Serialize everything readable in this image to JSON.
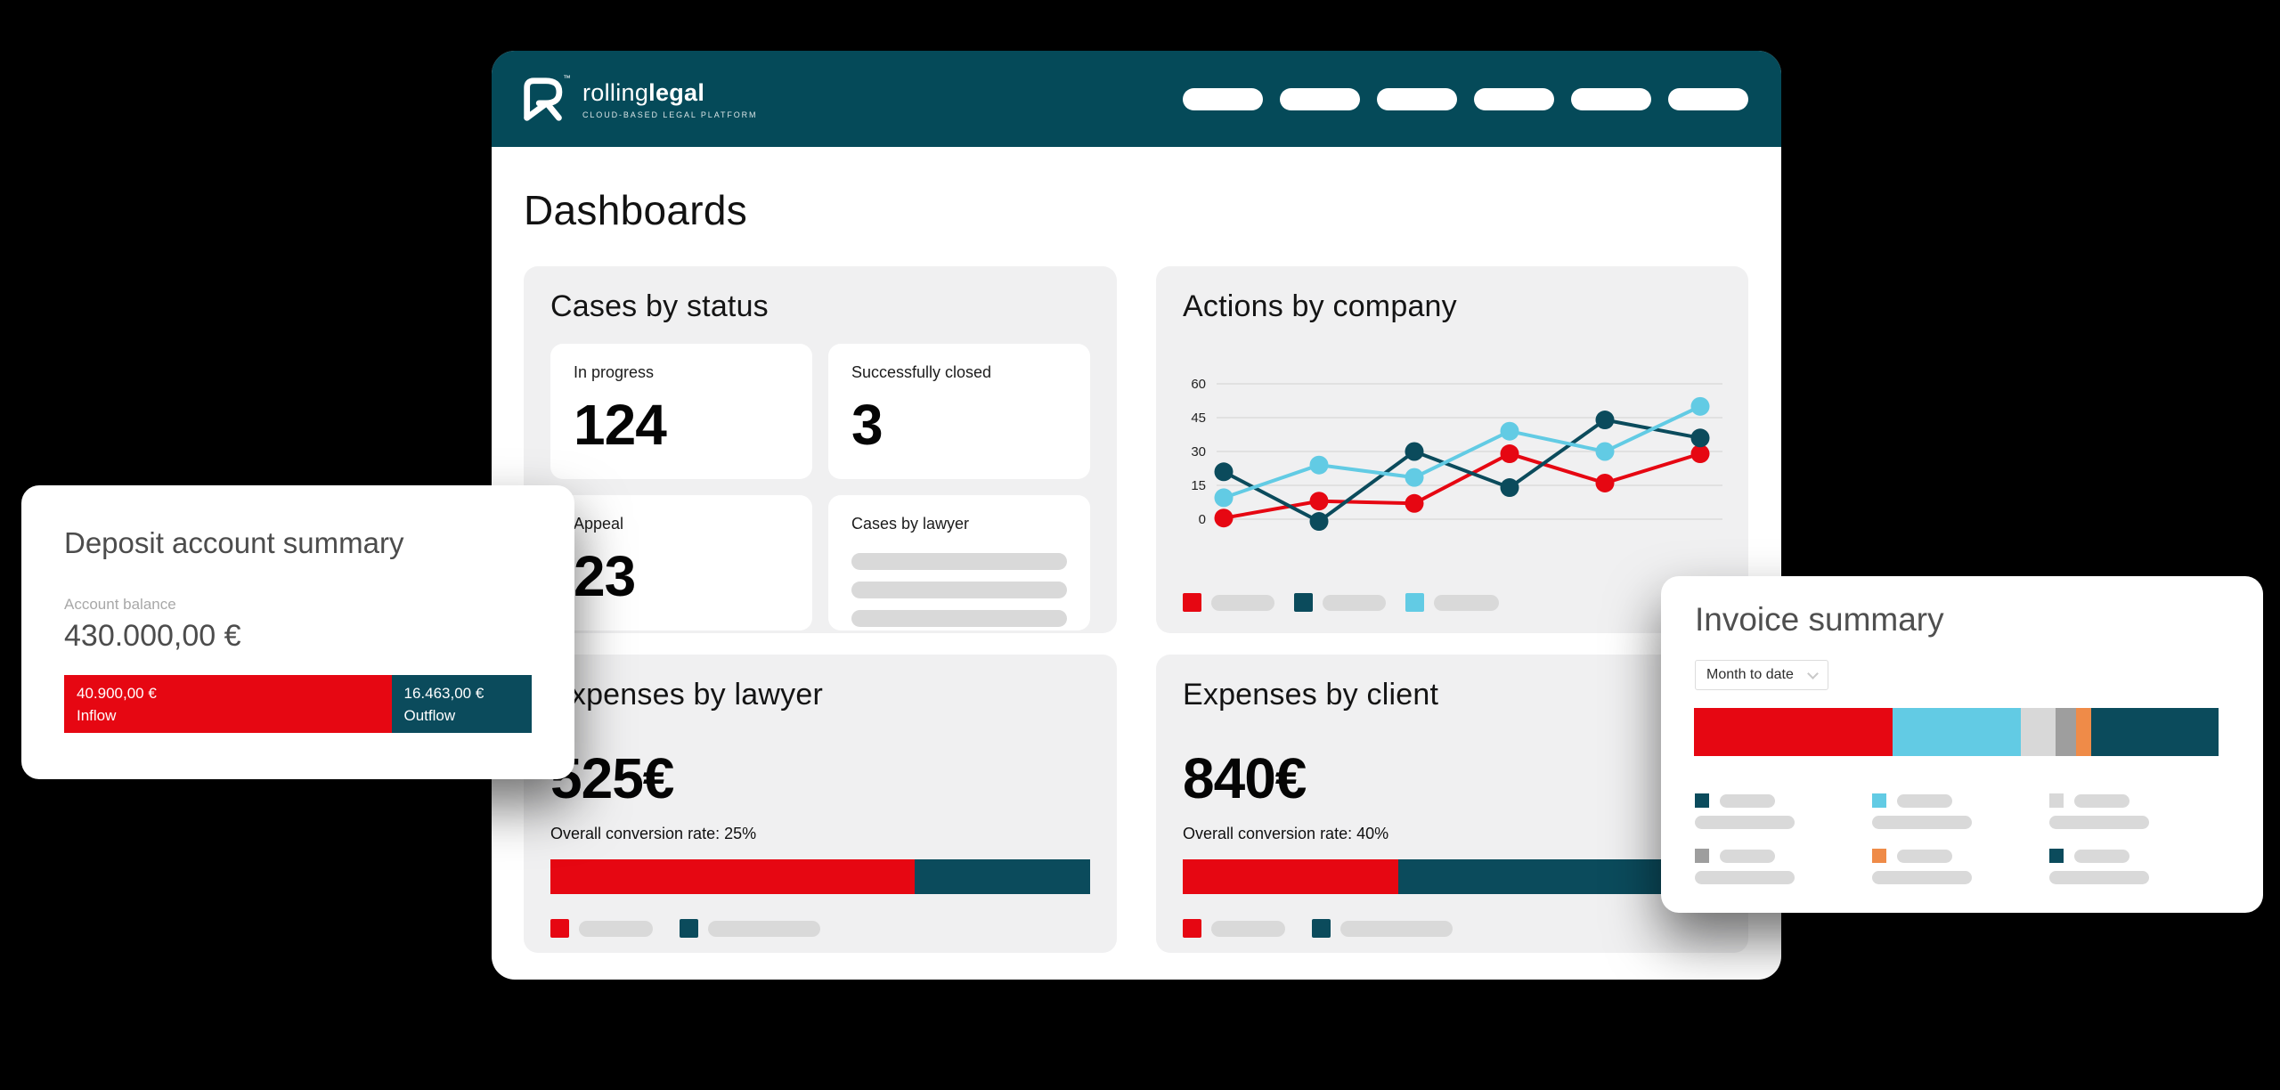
{
  "colors": {
    "header_teal": "#054a59",
    "red": "#e60712",
    "teal": "#0b4b5c",
    "light_blue": "#62cbe4",
    "orange": "#ef8b48",
    "light_gray": "#d8d8d8",
    "mid_gray": "#9e9e9e",
    "placeholder_gray": "#d9d9d9",
    "card_bg": "#f0f0f1",
    "page_bg": "#000000"
  },
  "header": {
    "brand": {
      "word_regular": "rolling",
      "word_bold": "legal",
      "trademark": "™",
      "tagline": "CLOUD-BASED LEGAL PLATFORM"
    },
    "nav_placeholder_count": 6
  },
  "page_title": "Dashboards",
  "cases_by_status": {
    "title": "Cases by status",
    "tiles": [
      {
        "label": "In progress",
        "value": "124"
      },
      {
        "label": "Successfully closed",
        "value": "3"
      },
      {
        "label": "Appeal",
        "value": "23"
      },
      {
        "label": "Cases by lawyer",
        "placeholder_rows": 3
      }
    ]
  },
  "actions_by_company": {
    "title": "Actions by company",
    "chart_data": {
      "type": "line",
      "x": [
        1,
        2,
        3,
        4,
        5,
        6
      ],
      "y_ticks": [
        0,
        15,
        30,
        45,
        60
      ],
      "ylim": [
        -3,
        62
      ],
      "grid": true,
      "legend_position": "bottom",
      "series": [
        {
          "name": "red-series",
          "color_key": "red",
          "values": [
            0.5,
            8,
            7,
            29,
            16,
            29
          ]
        },
        {
          "name": "teal-series",
          "color_key": "teal",
          "values": [
            21,
            -1,
            30,
            14,
            44,
            36
          ]
        },
        {
          "name": "light-blue-series",
          "color_key": "light_blue",
          "values": [
            9.5,
            24,
            18.5,
            39,
            30,
            50
          ]
        }
      ],
      "legend_color_keys": [
        "red",
        "teal",
        "light_blue"
      ]
    }
  },
  "expenses_by_lawyer": {
    "title": "Expenses by lawyer",
    "amount": "525€",
    "conversion_note": "Overall conversion rate: 25%",
    "chart_data": {
      "type": "stacked-bar",
      "segments": [
        {
          "color_key": "red",
          "pct": 67.5
        },
        {
          "color_key": "teal",
          "pct": 32.5
        }
      ]
    },
    "legend_color_keys": [
      "red",
      "teal"
    ]
  },
  "expenses_by_client": {
    "title": "Expenses by client",
    "amount": "840€",
    "conversion_note": "Overall conversion rate: 40%",
    "chart_data": {
      "type": "stacked-bar",
      "segments": [
        {
          "color_key": "red",
          "pct": 40
        },
        {
          "color_key": "teal",
          "pct": 60
        }
      ]
    },
    "legend_color_keys": [
      "red",
      "teal"
    ]
  },
  "deposit_summary": {
    "title": "Deposit account summary",
    "balance_label": "Account balance",
    "balance_value": "430.000,00 €",
    "chart_data": {
      "type": "stacked-bar",
      "segments": [
        {
          "color_key": "red",
          "pct": 70,
          "amount": "40.900,00 €",
          "label": "Inflow"
        },
        {
          "color_key": "teal",
          "pct": 30,
          "amount": "16.463,00 €",
          "label": "Outflow"
        }
      ]
    }
  },
  "invoice_summary": {
    "title": "Invoice summary",
    "period_selector": {
      "value": "Month to date"
    },
    "chart_data": {
      "type": "stacked-bar",
      "segments": [
        {
          "color_key": "red",
          "pct": 37.9
        },
        {
          "color_key": "light_blue",
          "pct": 24.4
        },
        {
          "color_key": "light_gray",
          "pct": 6.6
        },
        {
          "color_key": "mid_gray",
          "pct": 3.9
        },
        {
          "color_key": "orange",
          "pct": 2.9
        },
        {
          "color_key": "teal",
          "pct": 24.3
        }
      ]
    },
    "legend_color_keys": [
      [
        "teal",
        "light_blue",
        "light_gray"
      ],
      [
        "mid_gray",
        "orange",
        "teal"
      ]
    ]
  }
}
